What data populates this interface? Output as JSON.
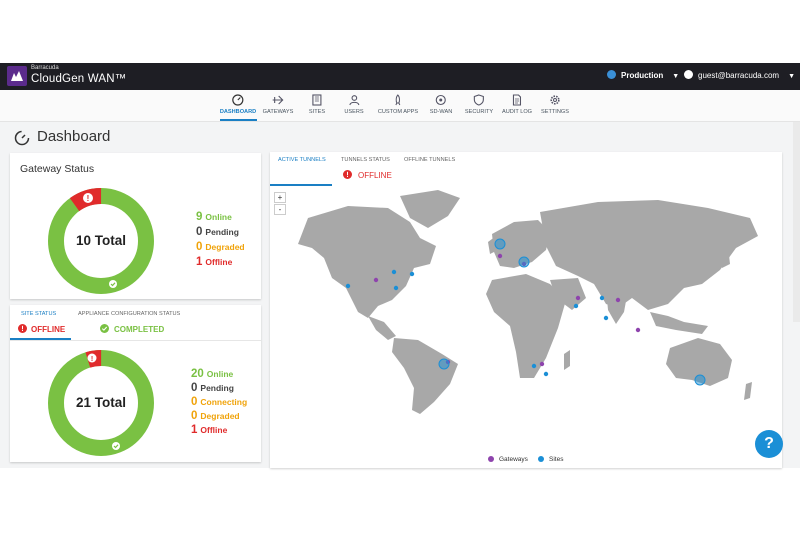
{
  "header": {
    "brand_small": "Barracuda",
    "brand_name": "CloudGen WAN™",
    "environment": "Production",
    "user_email": "guest@barracuda.com",
    "colors": {
      "bar": "#1e1e24",
      "logo": "#5b2b8c"
    }
  },
  "nav": {
    "items": [
      {
        "label": "DASHBOARD",
        "icon": "gauge-icon",
        "active": true
      },
      {
        "label": "GATEWAYS",
        "icon": "gateway-icon"
      },
      {
        "label": "SITES",
        "icon": "building-icon"
      },
      {
        "label": "USERS",
        "icon": "users-icon"
      },
      {
        "label": "CUSTOM APPS",
        "icon": "rocket-icon"
      },
      {
        "label": "SD-WAN",
        "icon": "network-icon"
      },
      {
        "label": "SECURITY",
        "icon": "shield-icon"
      },
      {
        "label": "AUDIT LOG",
        "icon": "document-icon"
      },
      {
        "label": "SETTINGS",
        "icon": "gear-icon"
      }
    ]
  },
  "page": {
    "title": "Dashboard"
  },
  "gateway_status": {
    "title": "Gateway Status",
    "total_label": "10 Total",
    "counts": {
      "online": 9,
      "pending": 0,
      "degraded": 0,
      "offline": 1
    },
    "legend": [
      {
        "n": "9",
        "label": "Online",
        "kind": "online"
      },
      {
        "n": "0",
        "label": "Pending",
        "kind": "pending"
      },
      {
        "n": "0",
        "label": "Degraded",
        "kind": "degraded"
      },
      {
        "n": "1",
        "label": "Offline",
        "kind": "offline"
      }
    ]
  },
  "site_status": {
    "tabs": [
      "SITE STATUS",
      "APPLIANCE CONFIGURATION STATUS"
    ],
    "offline_label": "OFFLINE",
    "completed_label": "COMPLETED",
    "total_label": "21 Total",
    "counts": {
      "online": 20,
      "pending": 0,
      "connecting": 0,
      "degraded": 0,
      "offline": 1
    },
    "legend": [
      {
        "n": "20",
        "label": "Online",
        "kind": "online"
      },
      {
        "n": "0",
        "label": "Pending",
        "kind": "pending"
      },
      {
        "n": "0",
        "label": "Connecting",
        "kind": "degraded"
      },
      {
        "n": "0",
        "label": "Degraded",
        "kind": "degraded"
      },
      {
        "n": "1",
        "label": "Offline",
        "kind": "offline"
      }
    ]
  },
  "map": {
    "tabs": [
      "ACTIVE TUNNELS",
      "TUNNELS STATUS",
      "OFFLINE TUNNELS"
    ],
    "offline_label": "OFFLINE",
    "zoom_in": "+",
    "zoom_out": "-",
    "legend": {
      "gateways": "Gateways",
      "sites": "Sites"
    },
    "colors": {
      "gateway": "#8e44ad",
      "site": "#1b8fd6",
      "land": "#a8a8a8"
    }
  },
  "colors": {
    "online": "#7ac143",
    "offline": "#e02b2b",
    "degraded": "#f0a30a",
    "accent": "#1a7fc4"
  }
}
